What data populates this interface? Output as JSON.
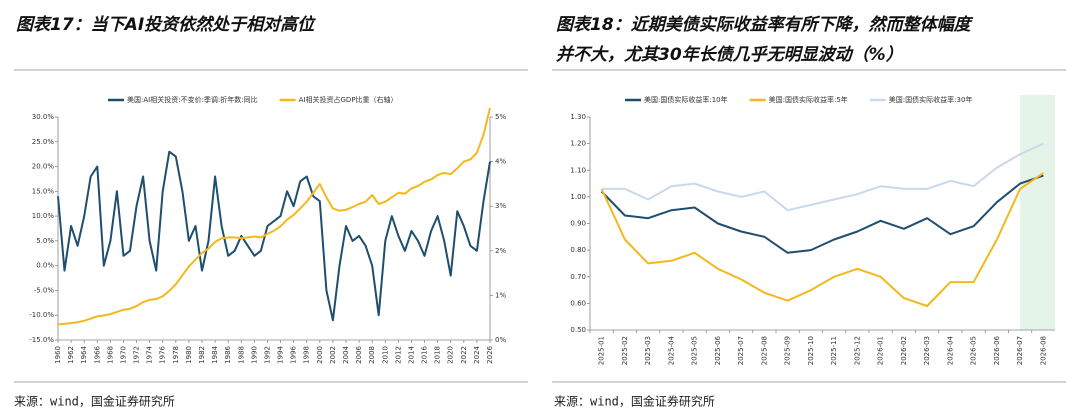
{
  "charts": [
    {
      "chart_data": {
        "type": "line",
        "title": "图表17：当下AI投资依然处于相对高位",
        "source": "来源：wind，国金证券研究所",
        "x": [
          1960,
          1961,
          1962,
          1963,
          1964,
          1965,
          1966,
          1967,
          1968,
          1969,
          1970,
          1971,
          1972,
          1973,
          1974,
          1975,
          1976,
          1977,
          1978,
          1979,
          1980,
          1981,
          1982,
          1983,
          1984,
          1985,
          1986,
          1987,
          1988,
          1989,
          1990,
          1991,
          1992,
          1993,
          1994,
          1995,
          1996,
          1997,
          1998,
          1999,
          2000,
          2001,
          2002,
          2003,
          2004,
          2005,
          2006,
          2007,
          2008,
          2009,
          2010,
          2011,
          2012,
          2013,
          2014,
          2015,
          2016,
          2017,
          2018,
          2019,
          2020,
          2021,
          2022,
          2023,
          2024,
          2025,
          2026
        ],
        "xlim": [
          1960,
          2026
        ],
        "xticks": [
          1960,
          1962,
          1964,
          1966,
          1968,
          1970,
          1972,
          1974,
          1976,
          1978,
          1980,
          1982,
          1984,
          1986,
          1988,
          1990,
          1992,
          1994,
          1996,
          1998,
          2000,
          2002,
          2004,
          2006,
          2008,
          2010,
          2012,
          2014,
          2016,
          2018,
          2020,
          2022,
          2024,
          2026
        ],
        "ylim": [
          -15,
          30
        ],
        "yticks": [
          {
            "value": -15,
            "label": "-15.0%"
          },
          {
            "value": -10,
            "label": "-10.0%"
          },
          {
            "value": -5,
            "label": "-5.0%"
          },
          {
            "value": 0,
            "label": "0.0%"
          },
          {
            "value": 5,
            "label": "5.0%"
          },
          {
            "value": 10,
            "label": "10.0%"
          },
          {
            "value": 15,
            "label": "15.0%"
          },
          {
            "value": 20,
            "label": "20.0%"
          },
          {
            "value": 25,
            "label": "25.0%"
          },
          {
            "value": 30,
            "label": "30.0%"
          }
        ],
        "y2lim": [
          0,
          5
        ],
        "y2ticks": [
          {
            "value": 0,
            "label": "0%"
          },
          {
            "value": 1,
            "label": "1%"
          },
          {
            "value": 2,
            "label": "2%"
          },
          {
            "value": 3,
            "label": "3%"
          },
          {
            "value": 4,
            "label": "4%"
          },
          {
            "value": 5,
            "label": "5%"
          }
        ],
        "series": [
          {
            "name": "美国:AI相关投资:不变价:季调:折年数:同比",
            "color": "#1f4e6e",
            "values": [
              14,
              -1,
              8,
              4,
              10,
              18,
              20,
              0,
              5,
              15,
              2,
              3,
              12,
              18,
              5,
              -1,
              15,
              23,
              22,
              15,
              5,
              8,
              -1,
              5,
              18,
              8,
              2,
              3,
              6,
              4,
              2,
              3,
              8,
              9,
              10,
              15,
              12,
              17,
              18,
              14,
              13,
              -5,
              -11,
              0,
              8,
              5,
              6,
              4,
              0,
              -10,
              5,
              10,
              6,
              3,
              7,
              5,
              2,
              7,
              10,
              5,
              -2,
              11,
              8,
              4,
              3,
              13,
              21
            ]
          },
          {
            "name": "AI相关投资占GDP比重（右轴）",
            "color": "#f4b81c",
            "axis": "y2",
            "values": [
              0.35,
              0.36,
              0.38,
              0.4,
              0.43,
              0.48,
              0.53,
              0.55,
              0.58,
              0.63,
              0.68,
              0.7,
              0.76,
              0.85,
              0.9,
              0.92,
              0.98,
              1.1,
              1.25,
              1.45,
              1.65,
              1.8,
              1.95,
              2.05,
              2.2,
              2.28,
              2.3,
              2.3,
              2.28,
              2.3,
              2.32,
              2.3,
              2.38,
              2.45,
              2.55,
              2.7,
              2.8,
              2.95,
              3.1,
              3.3,
              3.5,
              3.2,
              2.95,
              2.9,
              2.92,
              2.98,
              3.05,
              3.1,
              3.25,
              3.05,
              3.1,
              3.2,
              3.3,
              3.28,
              3.4,
              3.45,
              3.55,
              3.6,
              3.7,
              3.75,
              3.72,
              3.85,
              4.0,
              4.05,
              4.2,
              4.6,
              5.2
            ]
          }
        ]
      }
    },
    {
      "chart_data": {
        "type": "line",
        "title": "图表18：近期美债实际收益率有所下降，然而整体幅度",
        "title_line2": "并不大，尤其30年长债几乎无明显波动（%）",
        "source": "来源：wind，国金证券研究所",
        "categories": [
          "2025-01",
          "2025-02",
          "2025-03",
          "2025-04",
          "2025-05",
          "2025-06",
          "2025-07",
          "2025-08",
          "2025-09",
          "2025-10",
          "2025-11",
          "2025-12",
          "2026-01",
          "2026-02",
          "2026-03",
          "2026-04",
          "2026-05",
          "2026-06",
          "2026-07",
          "2026-08"
        ],
        "ylim": [
          0.5,
          1.3
        ],
        "yticks": [
          {
            "value": 0.5,
            "label": "0.50"
          },
          {
            "value": 0.6,
            "label": "0.60"
          },
          {
            "value": 0.7,
            "label": "0.70"
          },
          {
            "value": 0.8,
            "label": "0.80"
          },
          {
            "value": 0.9,
            "label": "0.90"
          },
          {
            "value": 1.0,
            "label": "1.00"
          },
          {
            "value": 1.1,
            "label": "1.10"
          },
          {
            "value": 1.2,
            "label": "1.20"
          },
          {
            "value": 1.3,
            "label": "1.30"
          }
        ],
        "series": [
          {
            "name": "美国:国债实际收益率:10年",
            "color": "#1f4e6e",
            "values": [
              1.02,
              0.93,
              0.92,
              0.95,
              0.96,
              0.9,
              0.87,
              0.85,
              0.79,
              0.8,
              0.84,
              0.87,
              0.91,
              0.88,
              0.92,
              0.86,
              0.89,
              0.98,
              1.05,
              1.08
            ]
          },
          {
            "name": "美国:国债实际收益率:5年",
            "color": "#f4b81c",
            "values": [
              1.03,
              0.84,
              0.75,
              0.76,
              0.79,
              0.73,
              0.69,
              0.64,
              0.61,
              0.65,
              0.7,
              0.73,
              0.7,
              0.62,
              0.59,
              0.68,
              0.68,
              0.84,
              1.03,
              1.09
            ]
          },
          {
            "name": "美国:国债实际收益率:30年",
            "color": "#c9d9ec",
            "values": [
              1.03,
              1.03,
              0.99,
              1.04,
              1.05,
              1.02,
              1.0,
              1.02,
              0.95,
              0.97,
              0.99,
              1.01,
              1.04,
              1.03,
              1.03,
              1.06,
              1.04,
              1.11,
              1.16,
              1.2
            ]
          }
        ]
      }
    }
  ]
}
